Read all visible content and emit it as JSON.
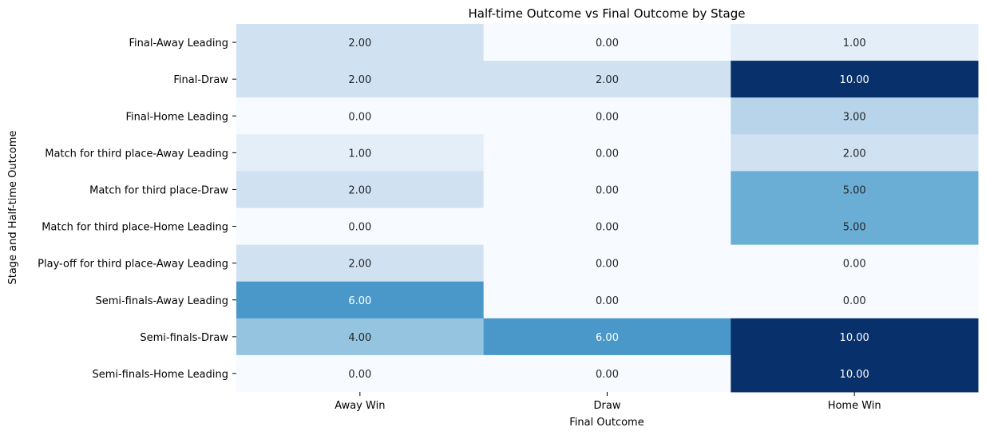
{
  "chart_data": {
    "type": "heatmap",
    "title": "Half-time Outcome vs Final Outcome by Stage",
    "xlabel": "Final Outcome",
    "ylabel": "Stage and Half-time Outcome",
    "x_categories": [
      "Away Win",
      "Draw",
      "Home Win"
    ],
    "y_categories": [
      "Final-Away Leading",
      "Final-Draw",
      "Final-Home Leading",
      "Match for third place-Away Leading",
      "Match for third place-Draw",
      "Match for third place-Home Leading",
      "Play-off for third place-Away Leading",
      "Semi-finals-Away Leading",
      "Semi-finals-Draw",
      "Semi-finals-Home Leading"
    ],
    "values": [
      [
        2,
        0,
        1
      ],
      [
        2,
        2,
        10
      ],
      [
        0,
        0,
        3
      ],
      [
        1,
        0,
        2
      ],
      [
        2,
        0,
        5
      ],
      [
        0,
        0,
        5
      ],
      [
        2,
        0,
        0
      ],
      [
        6,
        0,
        0
      ],
      [
        4,
        6,
        10
      ],
      [
        0,
        0,
        10
      ]
    ],
    "value_format": "2 decimals",
    "colormap": "Blues",
    "vmin": 0,
    "vmax": 10,
    "colorbar": false,
    "grid": false,
    "cell_colors": {
      "0": "#f7fbff",
      "1": "#e3eef9",
      "2": "#d0e1f2",
      "3": "#b7d4ea",
      "4": "#94c4df",
      "5": "#6aaed6",
      "6": "#4a98c9",
      "10": "#08306b"
    },
    "text_color_light": "#ffffff",
    "text_color_dark": "#262626"
  }
}
